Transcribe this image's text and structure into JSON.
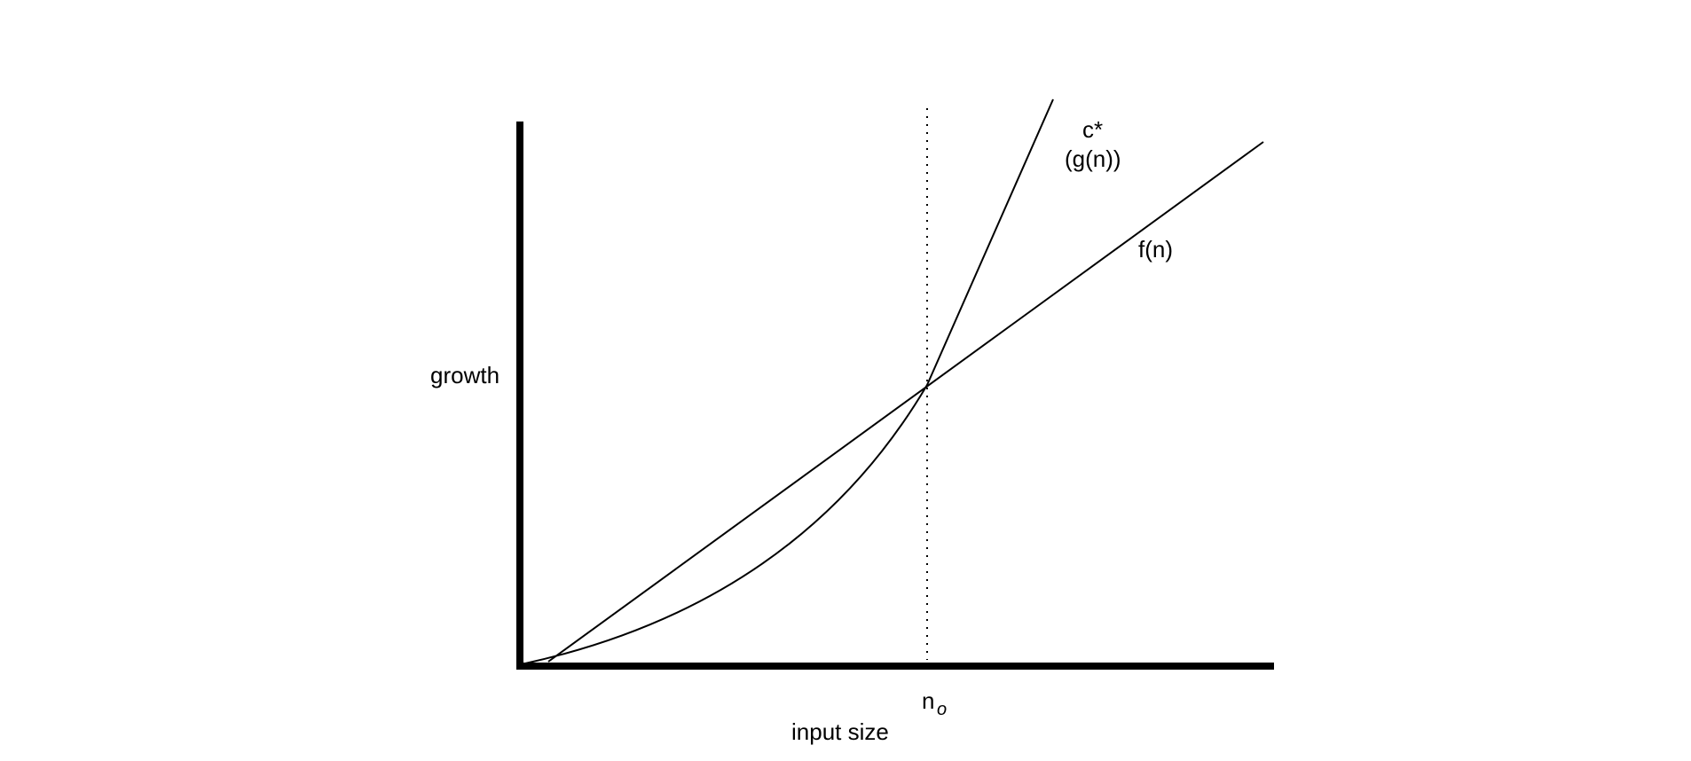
{
  "diagram": {
    "labels": {
      "y_axis": "growth",
      "x_axis": "input size",
      "threshold_base": "n",
      "threshold_sub": "o",
      "g_curve_line1": "c*",
      "g_curve_line2": "(g(n))",
      "f_line": "f(n)"
    },
    "colors": {
      "ink": "#000000",
      "background": "#ffffff"
    }
  }
}
